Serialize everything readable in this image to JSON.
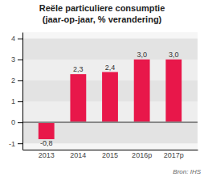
{
  "chart_data": {
    "type": "bar",
    "title": "Reële particuliere consumptie",
    "subtitle": "(jaar-op-jaar, % verandering)",
    "annotations": [
      "Bron: IHS"
    ],
    "categories": [
      "2013",
      "2014",
      "2015",
      "2016p",
      "2017p"
    ],
    "values": [
      -0.8,
      2.3,
      2.4,
      3.0,
      3.0
    ],
    "value_labels": [
      "-0,8",
      "2,3",
      "2,4",
      "3,0",
      "3,0"
    ],
    "data_labels": true,
    "color": "#e8174a",
    "ylim": [
      -1.3,
      4.3
    ],
    "yticks": [
      -1,
      0,
      1,
      2,
      3,
      4
    ],
    "grid": true
  }
}
